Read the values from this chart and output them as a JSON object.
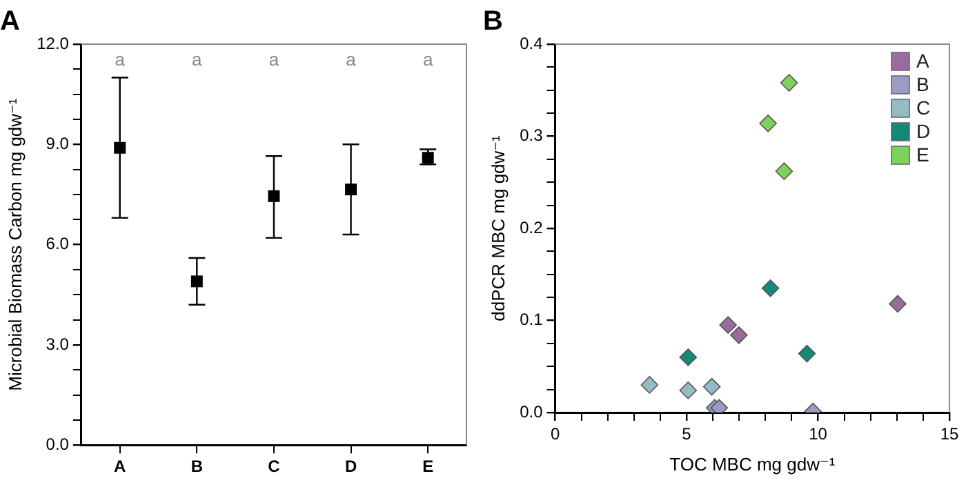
{
  "chart_data": [
    {
      "type": "scatter",
      "title": "A",
      "ylabel": "Microbial Biomass Carbon mg gdw⁻¹",
      "categories": [
        "A",
        "B",
        "C",
        "D",
        "E"
      ],
      "series": [
        {
          "color": "#000000",
          "values": [
            8.9,
            4.9,
            7.45,
            7.65,
            8.6
          ],
          "errors": [
            [
              6.8,
              11.0
            ],
            [
              4.2,
              5.6
            ],
            [
              6.2,
              8.65
            ],
            [
              6.3,
              9.0
            ],
            [
              8.4,
              8.85
            ]
          ]
        }
      ],
      "ylim": [
        0,
        12
      ],
      "yticks": [
        {
          "value": 0,
          "label": "0.0"
        },
        {
          "value": 0.75,
          "label": null
        },
        {
          "value": 1.5,
          "label": null
        },
        {
          "value": 2.25,
          "label": null
        },
        {
          "value": 3,
          "label": "3.0"
        },
        {
          "value": 3.75,
          "label": null
        },
        {
          "value": 4.5,
          "label": null
        },
        {
          "value": 5.25,
          "label": null
        },
        {
          "value": 6,
          "label": "6.0"
        },
        {
          "value": 6.75,
          "label": null
        },
        {
          "value": 7.5,
          "label": null
        },
        {
          "value": 8.25,
          "label": null
        },
        {
          "value": 9,
          "label": "9.0"
        },
        {
          "value": 9.75,
          "label": null
        },
        {
          "value": 10.5,
          "label": null
        },
        {
          "value": 11.25,
          "label": null
        },
        {
          "value": 12,
          "label": "12.0"
        }
      ],
      "annotations": [
        "a",
        "a",
        "a",
        "a",
        "a"
      ],
      "marker": "square",
      "grid": false,
      "legend": false
    },
    {
      "type": "scatter",
      "title": "B",
      "xlabel": "TOC MBC mg gdw⁻¹",
      "ylabel": "ddPCR MBC mg gdw⁻¹",
      "series": [
        {
          "name": "A",
          "color": "#9b6b9e",
          "x": [
            6.58,
            6.99,
            13.03
          ],
          "values": [
            0.095,
            0.084,
            0.118
          ]
        },
        {
          "name": "B",
          "color": "#9a9cc4",
          "x": [
            6.07,
            6.24,
            9.81
          ],
          "values": [
            0.005,
            0.005,
            0.001
          ]
        },
        {
          "name": "C",
          "color": "#93bcc6",
          "x": [
            3.59,
            5.06,
            5.96
          ],
          "values": [
            0.03,
            0.024,
            0.028
          ]
        },
        {
          "name": "D",
          "color": "#16887a",
          "x": [
            5.06,
            8.19,
            9.58
          ],
          "values": [
            0.06,
            0.135,
            0.064
          ]
        },
        {
          "name": "E",
          "color": "#7dd35a",
          "x": [
            8.9,
            8.1,
            8.71
          ],
          "values": [
            0.358,
            0.314,
            0.262
          ]
        }
      ],
      "xlim": [
        0,
        15
      ],
      "xticks": [
        0,
        {
          "value": 1,
          "label": null
        },
        {
          "value": 2,
          "label": null
        },
        {
          "value": 3,
          "label": null
        },
        {
          "value": 4,
          "label": null
        },
        5,
        {
          "value": 6,
          "label": null
        },
        {
          "value": 7,
          "label": null
        },
        {
          "value": 8,
          "label": null
        },
        {
          "value": 9,
          "label": null
        },
        10,
        {
          "value": 11,
          "label": null
        },
        {
          "value": 12,
          "label": null
        },
        {
          "value": 13,
          "label": null
        },
        {
          "value": 14,
          "label": null
        },
        15
      ],
      "ylim": [
        0,
        0.4
      ],
      "yticks": [
        {
          "value": 0,
          "label": "0.0"
        },
        {
          "value": 0.025,
          "label": null
        },
        {
          "value": 0.05,
          "label": null
        },
        {
          "value": 0.075,
          "label": null
        },
        {
          "value": 0.1,
          "label": "0.1"
        },
        {
          "value": 0.125,
          "label": null
        },
        {
          "value": 0.15,
          "label": null
        },
        {
          "value": 0.175,
          "label": null
        },
        {
          "value": 0.2,
          "label": "0.2"
        },
        {
          "value": 0.225,
          "label": null
        },
        {
          "value": 0.25,
          "label": null
        },
        {
          "value": 0.275,
          "label": null
        },
        {
          "value": 0.3,
          "label": "0.3"
        },
        {
          "value": 0.325,
          "label": null
        },
        {
          "value": 0.35,
          "label": null
        },
        {
          "value": 0.375,
          "label": null
        },
        {
          "value": 0.4,
          "label": "0.4"
        }
      ],
      "marker": "diamond",
      "grid": false,
      "legend": "top right"
    }
  ]
}
